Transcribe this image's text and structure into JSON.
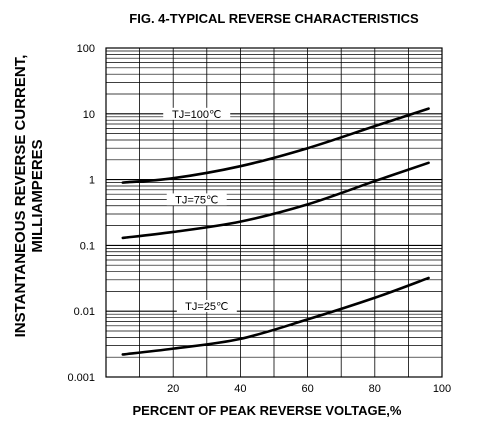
{
  "chart_data": {
    "type": "line",
    "title": "FIG. 4-TYPICAL REVERSE CHARACTERISTICS",
    "xlabel": "PERCENT OF PEAK REVERSE VOLTAGE,%",
    "ylabel_line1": "INSTANTANEOUS REVERSE CURRENT,",
    "ylabel_line2": "MILLIAMPERES",
    "xlim": [
      0,
      100
    ],
    "ylim": [
      0.001,
      100
    ],
    "yscale": "log",
    "grid": true,
    "x_ticks": [
      "20",
      "40",
      "60",
      "80",
      "100"
    ],
    "x_tick_values": [
      20,
      40,
      60,
      80,
      100
    ],
    "y_ticks": [
      "0.001",
      "0.01",
      "0.1",
      "1",
      "10",
      "100"
    ],
    "y_tick_values": [
      0.001,
      0.01,
      0.1,
      1,
      10,
      100
    ],
    "series": [
      {
        "name": "TJ=100℃",
        "x": [
          5,
          20,
          40,
          60,
          80,
          96
        ],
        "y": [
          0.9,
          1.05,
          1.6,
          3.0,
          6.5,
          12
        ]
      },
      {
        "name": "TJ=75℃",
        "x": [
          5,
          20,
          40,
          60,
          80,
          96
        ],
        "y": [
          0.13,
          0.16,
          0.23,
          0.42,
          0.95,
          1.8
        ]
      },
      {
        "name": "TJ=25℃",
        "x": [
          5,
          20,
          40,
          60,
          80,
          96
        ],
        "y": [
          0.0022,
          0.0027,
          0.0038,
          0.0075,
          0.016,
          0.032
        ]
      }
    ]
  }
}
